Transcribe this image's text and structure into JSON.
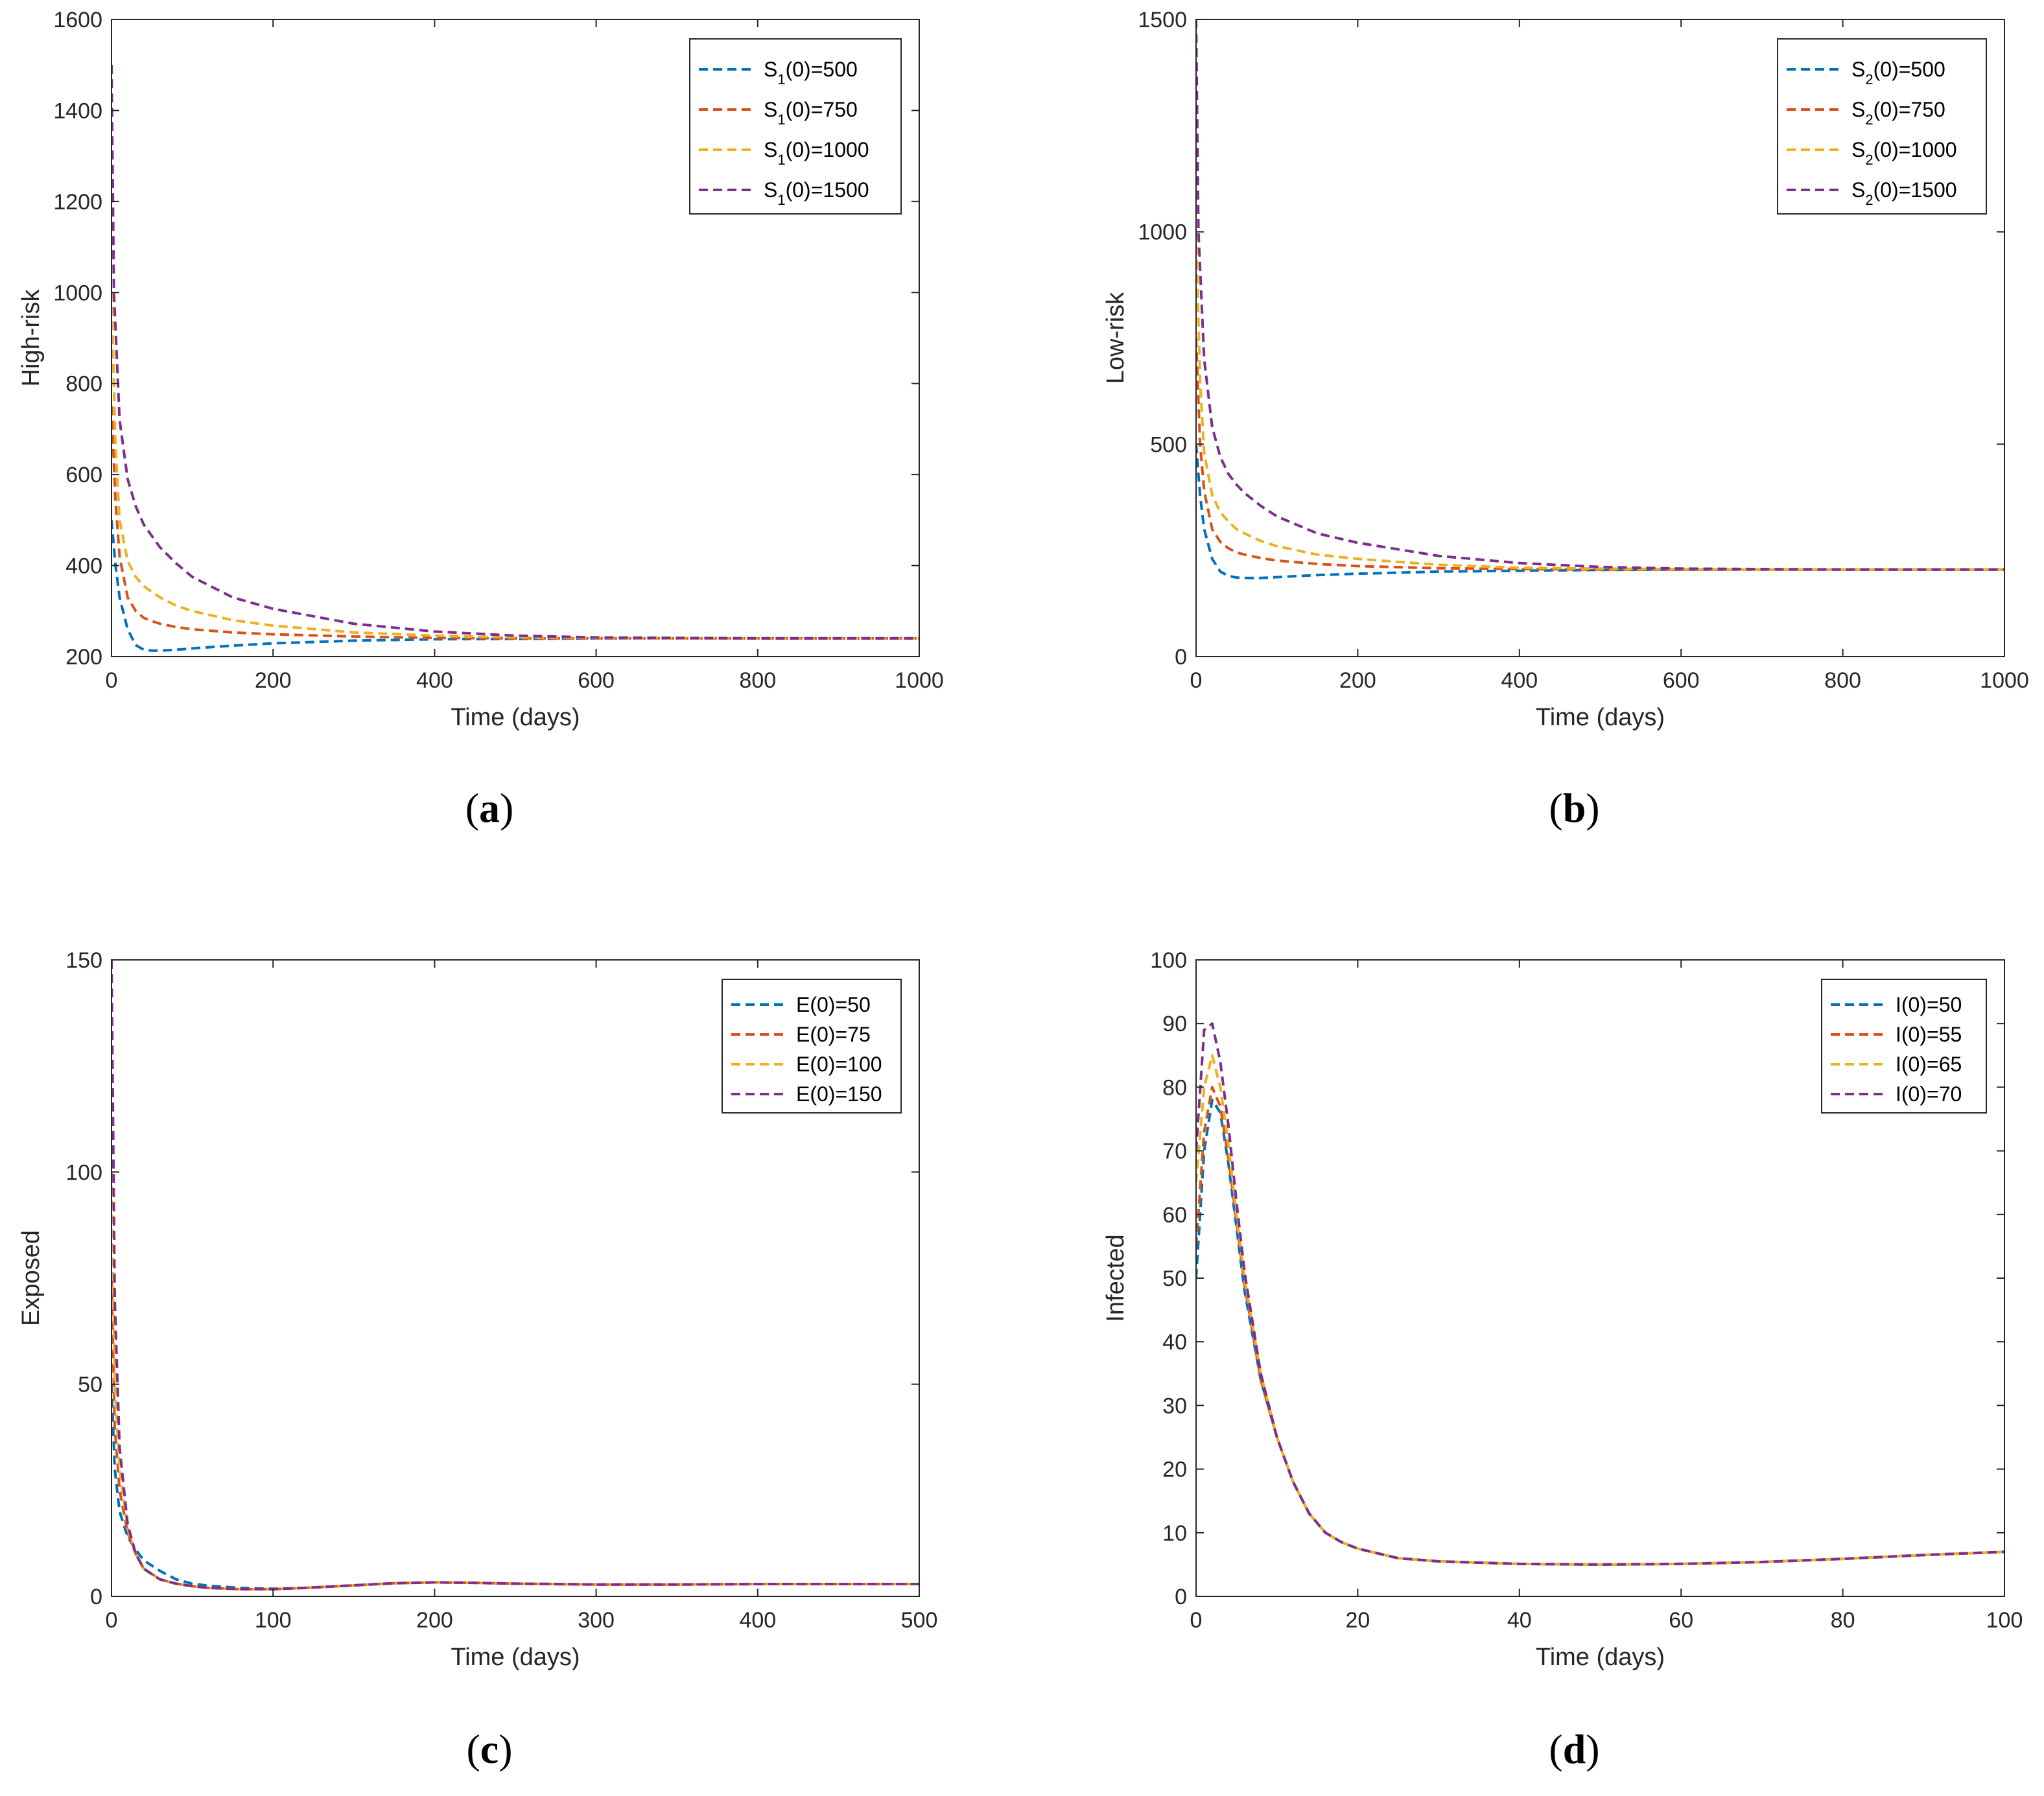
{
  "chart_data": [
    {
      "id": "a",
      "type": "line",
      "caption": "a",
      "xlabel": "Time (days)",
      "ylabel": "High-risk",
      "xlim": [
        0,
        1000
      ],
      "ylim": [
        200,
        1600
      ],
      "xticks": [
        "0",
        "200",
        "400",
        "600",
        "800",
        "1000"
      ],
      "yticks": [
        "200",
        "400",
        "600",
        "800",
        "1000",
        "1200",
        "1400",
        "1600"
      ],
      "legend_position": "top-right",
      "series": [
        {
          "name": "S1(0)=500",
          "legend": {
            "pre": "S",
            "sub": "1",
            "post": "(0)=500"
          },
          "color": "#0072BD",
          "x": [
            0,
            5,
            10,
            20,
            30,
            40,
            50,
            60,
            80,
            100,
            150,
            200,
            300,
            400,
            500,
            600,
            700,
            800,
            900,
            1000
          ],
          "y": [
            500,
            400,
            330,
            260,
            225,
            215,
            213,
            213,
            215,
            218,
            224,
            229,
            235,
            238,
            239,
            240,
            240,
            240,
            240,
            240
          ]
        },
        {
          "name": "S1(0)=750",
          "legend": {
            "pre": "S",
            "sub": "1",
            "post": "(0)=750"
          },
          "color": "#D95319",
          "x": [
            0,
            5,
            10,
            20,
            30,
            40,
            50,
            60,
            80,
            100,
            150,
            200,
            300,
            400,
            500,
            600,
            700,
            800,
            900,
            1000
          ],
          "y": [
            750,
            540,
            420,
            330,
            300,
            285,
            278,
            272,
            265,
            260,
            253,
            249,
            244,
            241,
            240,
            240,
            240,
            240,
            240,
            240
          ]
        },
        {
          "name": "S1(0)=1000",
          "legend": {
            "pre": "S",
            "sub": "1",
            "post": "(0)=1000"
          },
          "color": "#EDB120",
          "x": [
            0,
            5,
            10,
            20,
            30,
            40,
            50,
            60,
            80,
            100,
            150,
            200,
            300,
            400,
            500,
            600,
            700,
            800,
            900,
            1000
          ],
          "y": [
            1000,
            660,
            500,
            410,
            375,
            355,
            342,
            330,
            312,
            300,
            280,
            268,
            253,
            246,
            242,
            241,
            240,
            240,
            240,
            240
          ]
        },
        {
          "name": "S1(0)=1500",
          "legend": {
            "pre": "S",
            "sub": "1",
            "post": "(0)=1500"
          },
          "color": "#7E2F8E",
          "x": [
            0,
            3,
            10,
            20,
            30,
            40,
            50,
            60,
            80,
            100,
            150,
            200,
            300,
            400,
            500,
            600,
            700,
            800,
            900,
            1000
          ],
          "y": [
            1500,
            1000,
            720,
            590,
            530,
            490,
            465,
            440,
            405,
            375,
            330,
            305,
            272,
            255,
            246,
            242,
            241,
            240,
            240,
            240
          ]
        }
      ]
    },
    {
      "id": "b",
      "type": "line",
      "caption": "b",
      "xlabel": "Time (days)",
      "ylabel": "Low-risk",
      "xlim": [
        0,
        1000
      ],
      "ylim": [
        0,
        1500
      ],
      "xticks": [
        "0",
        "200",
        "400",
        "600",
        "800",
        "1000"
      ],
      "yticks": [
        "0",
        "500",
        "1000",
        "1500"
      ],
      "legend_position": "top-right",
      "series": [
        {
          "name": "S2(0)=500",
          "legend": {
            "pre": "S",
            "sub": "2",
            "post": "(0)=500"
          },
          "color": "#0072BD",
          "x": [
            0,
            5,
            10,
            20,
            30,
            40,
            50,
            60,
            80,
            100,
            150,
            200,
            300,
            400,
            500,
            600,
            700,
            800,
            900,
            1000
          ],
          "y": [
            500,
            380,
            300,
            230,
            200,
            190,
            186,
            185,
            185,
            187,
            192,
            195,
            200,
            202,
            204,
            205,
            205,
            205,
            205,
            205
          ]
        },
        {
          "name": "S2(0)=750",
          "legend": {
            "pre": "S",
            "sub": "2",
            "post": "(0)=750"
          },
          "color": "#D95319",
          "x": [
            0,
            5,
            10,
            20,
            30,
            40,
            50,
            60,
            80,
            100,
            150,
            200,
            300,
            400,
            500,
            600,
            700,
            800,
            900,
            1000
          ],
          "y": [
            750,
            500,
            390,
            300,
            270,
            255,
            245,
            240,
            232,
            226,
            218,
            213,
            208,
            206,
            205,
            205,
            205,
            205,
            205,
            205
          ]
        },
        {
          "name": "S2(0)=1000",
          "legend": {
            "pre": "S",
            "sub": "2",
            "post": "(0)=1000"
          },
          "color": "#EDB120",
          "x": [
            0,
            5,
            10,
            20,
            30,
            40,
            50,
            60,
            80,
            100,
            150,
            200,
            300,
            400,
            500,
            600,
            700,
            800,
            900,
            1000
          ],
          "y": [
            1000,
            650,
            480,
            380,
            340,
            318,
            300,
            290,
            272,
            260,
            240,
            230,
            216,
            209,
            207,
            206,
            205,
            205,
            205,
            205
          ]
        },
        {
          "name": "S2(0)=1500",
          "legend": {
            "pre": "S",
            "sub": "2",
            "post": "(0)=1500"
          },
          "color": "#7E2F8E",
          "x": [
            0,
            3,
            10,
            20,
            30,
            40,
            50,
            60,
            80,
            100,
            150,
            200,
            300,
            400,
            500,
            600,
            700,
            800,
            900,
            1000
          ],
          "y": [
            1500,
            1000,
            700,
            540,
            470,
            430,
            405,
            385,
            355,
            330,
            290,
            268,
            237,
            220,
            211,
            207,
            206,
            205,
            205,
            205
          ]
        }
      ]
    },
    {
      "id": "c",
      "type": "line",
      "caption": "c",
      "xlabel": "Time (days)",
      "ylabel": "Exposed",
      "xlim": [
        0,
        500
      ],
      "ylim": [
        0,
        150
      ],
      "xticks": [
        "0",
        "100",
        "200",
        "300",
        "400",
        "500"
      ],
      "yticks": [
        "0",
        "50",
        "100",
        "150"
      ],
      "legend_position": "top-right",
      "series": [
        {
          "name": "E(0)=50",
          "legend": {
            "pre": "E(0)=50",
            "sub": "",
            "post": ""
          },
          "color": "#0072BD",
          "x": [
            0,
            2,
            5,
            10,
            15,
            20,
            30,
            40,
            50,
            60,
            80,
            100,
            120,
            150,
            175,
            200,
            225,
            250,
            300,
            350,
            400,
            450,
            500
          ],
          "y": [
            50,
            30,
            20,
            14,
            11,
            8.5,
            6,
            4,
            3,
            2.5,
            2,
            1.8,
            2,
            2.6,
            3.1,
            3.3,
            3.2,
            3,
            2.8,
            2.8,
            2.9,
            2.9,
            2.9
          ]
        },
        {
          "name": "E(0)=75",
          "legend": {
            "pre": "E(0)=75",
            "sub": "",
            "post": ""
          },
          "color": "#D95319",
          "x": [
            0,
            2,
            5,
            10,
            15,
            20,
            30,
            40,
            50,
            60,
            80,
            100,
            120,
            150,
            175,
            200,
            225,
            250,
            300,
            350,
            400,
            450,
            500
          ],
          "y": [
            75,
            40,
            25,
            15,
            10,
            6.5,
            4,
            3,
            2.4,
            2,
            1.7,
            1.7,
            2,
            2.6,
            3.1,
            3.3,
            3.2,
            3,
            2.8,
            2.8,
            2.9,
            2.9,
            2.9
          ]
        },
        {
          "name": "E(0)=100",
          "legend": {
            "pre": "E(0)=100",
            "sub": "",
            "post": ""
          },
          "color": "#EDB120",
          "x": [
            0,
            2,
            5,
            10,
            15,
            20,
            30,
            40,
            50,
            60,
            80,
            100,
            120,
            150,
            175,
            200,
            225,
            250,
            300,
            350,
            400,
            450,
            500
          ],
          "y": [
            100,
            50,
            30,
            16,
            10,
            6.5,
            4,
            3,
            2.4,
            2,
            1.7,
            1.7,
            2,
            2.6,
            3.1,
            3.3,
            3.2,
            3,
            2.8,
            2.8,
            2.9,
            2.9,
            2.9
          ]
        },
        {
          "name": "E(0)=150",
          "legend": {
            "pre": "E(0)=150",
            "sub": "",
            "post": ""
          },
          "color": "#7E2F8E",
          "x": [
            0,
            2,
            5,
            10,
            15,
            20,
            30,
            40,
            50,
            60,
            80,
            100,
            120,
            150,
            175,
            200,
            225,
            250,
            300,
            350,
            400,
            450,
            500
          ],
          "y": [
            150,
            70,
            35,
            17,
            10,
            6.5,
            4,
            3,
            2.4,
            2,
            1.7,
            1.7,
            2,
            2.6,
            3.1,
            3.3,
            3.2,
            3,
            2.8,
            2.8,
            2.9,
            2.9,
            2.9
          ]
        }
      ]
    },
    {
      "id": "d",
      "type": "line",
      "caption": "d",
      "xlabel": "Time (days)",
      "ylabel": "Infected",
      "xlim": [
        0,
        100
      ],
      "ylim": [
        0,
        100
      ],
      "xticks": [
        "0",
        "20",
        "40",
        "60",
        "80",
        "100"
      ],
      "yticks": [
        "0",
        "10",
        "20",
        "30",
        "40",
        "50",
        "60",
        "70",
        "80",
        "90",
        "100"
      ],
      "legend_position": "top-right",
      "series": [
        {
          "name": "I(0)=50",
          "legend": {
            "pre": "I(0)=50",
            "sub": "",
            "post": ""
          },
          "color": "#0072BD",
          "x": [
            0,
            1,
            2,
            3,
            4,
            5,
            6,
            8,
            10,
            12,
            14,
            16,
            18,
            20,
            25,
            30,
            40,
            50,
            60,
            70,
            80,
            90,
            100
          ],
          "y": [
            50,
            70,
            78,
            76,
            68,
            58,
            48,
            34,
            25,
            18,
            13,
            10,
            8.5,
            7.5,
            6,
            5.5,
            5.1,
            5,
            5.1,
            5.4,
            5.9,
            6.5,
            7
          ]
        },
        {
          "name": "I(0)=55",
          "legend": {
            "pre": "I(0)=55",
            "sub": "",
            "post": ""
          },
          "color": "#D95319",
          "x": [
            0,
            1,
            2,
            3,
            4,
            5,
            6,
            8,
            10,
            12,
            14,
            16,
            18,
            20,
            25,
            30,
            40,
            50,
            60,
            70,
            80,
            90,
            100
          ],
          "y": [
            55,
            73,
            80,
            77,
            69,
            59,
            49,
            34,
            25,
            18,
            13,
            10,
            8.5,
            7.5,
            6,
            5.5,
            5.1,
            5,
            5.1,
            5.4,
            5.9,
            6.5,
            7
          ]
        },
        {
          "name": "I(0)=65",
          "legend": {
            "pre": "I(0)=65",
            "sub": "",
            "post": ""
          },
          "color": "#EDB120",
          "x": [
            0,
            1,
            2,
            3,
            4,
            5,
            6,
            8,
            10,
            12,
            14,
            16,
            18,
            20,
            25,
            30,
            40,
            50,
            60,
            70,
            80,
            90,
            100
          ],
          "y": [
            65,
            80,
            85,
            80,
            71,
            60,
            50,
            35,
            25,
            18,
            13,
            10,
            8.5,
            7.5,
            6,
            5.5,
            5.1,
            5,
            5.1,
            5.4,
            5.9,
            6.5,
            7
          ]
        },
        {
          "name": "I(0)=70",
          "legend": {
            "pre": "I(0)=70",
            "sub": "",
            "post": ""
          },
          "color": "#7E2F8E",
          "x": [
            0,
            1,
            2,
            3,
            4,
            5,
            6,
            8,
            10,
            12,
            14,
            16,
            18,
            20,
            25,
            30,
            40,
            50,
            60,
            70,
            80,
            90,
            100
          ],
          "y": [
            70,
            89,
            90,
            84,
            74,
            62,
            51,
            35,
            25,
            18,
            13,
            10,
            8.5,
            7.5,
            6,
            5.5,
            5.1,
            5,
            5.1,
            5.4,
            5.9,
            6.5,
            7
          ]
        }
      ]
    }
  ]
}
